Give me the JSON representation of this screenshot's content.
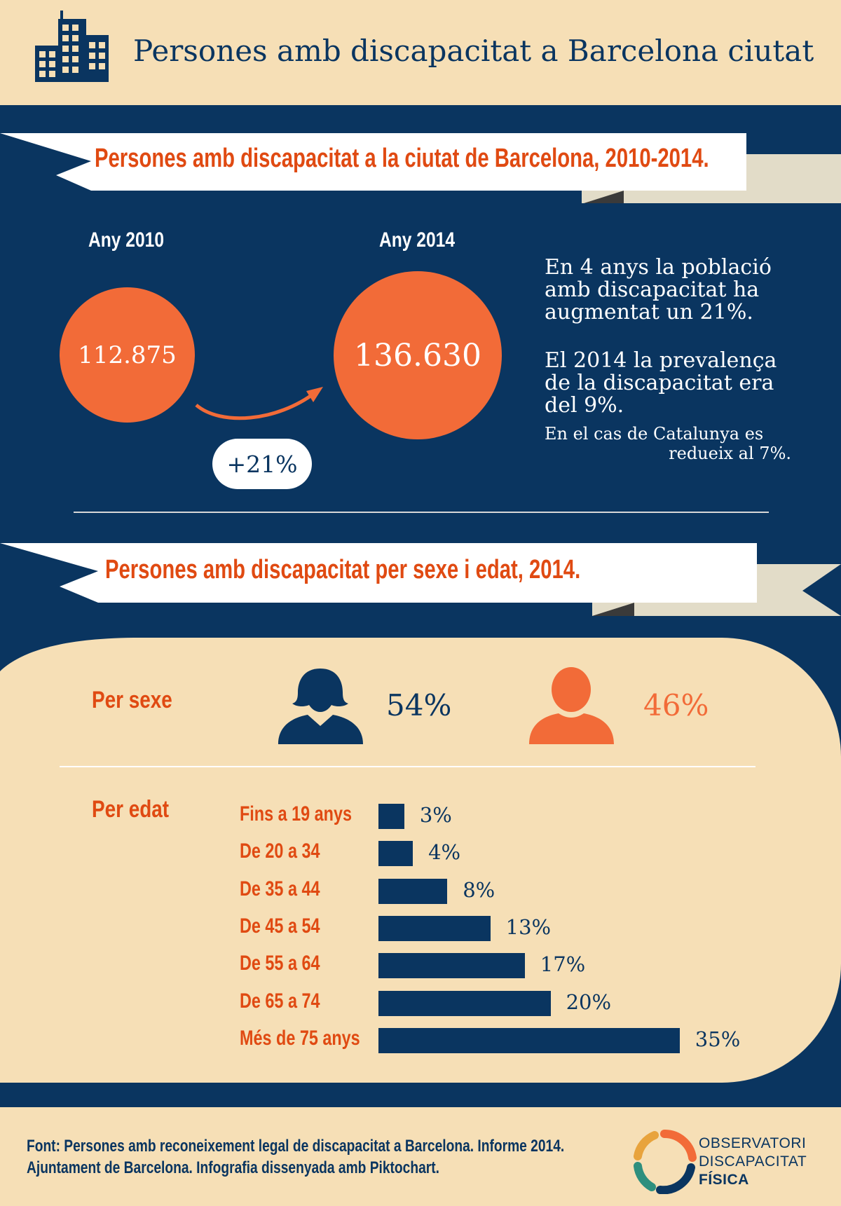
{
  "header": {
    "title": "Persones amb discapacitat a Barcelona ciutat",
    "icon": "building-icon"
  },
  "section1": {
    "banner": "Persones amb discapacitat a la ciutat de Barcelona, 2010-2014.",
    "year_2010_label": "Any 2010",
    "year_2014_label": "Any 2014",
    "value_2010": "112.875",
    "value_2014": "136.630",
    "increase": "+21%",
    "note_1": [
      "En 4 anys la població",
      "amb discapacitat ha",
      "augmentat un 21%."
    ],
    "note_2": [
      "El 2014 la prevalença",
      "de la discapacitat era",
      "del 9%."
    ],
    "note_3": [
      "En el cas de Catalunya es",
      "redueix al 7%."
    ]
  },
  "section2": {
    "banner": "Persones amb discapacitat per sexe i edat, 2014.",
    "sex_label": "Per sexe",
    "female_pct": "54%",
    "male_pct": "46%",
    "age_label": "Per edat"
  },
  "chart_data": [
    {
      "type": "bar",
      "title": "Persones amb discapacitat a la ciutat de Barcelona, 2010-2014.",
      "categories": [
        "Any 2010",
        "Any 2014"
      ],
      "values": [
        112875,
        136630
      ],
      "annotation": "+21%"
    },
    {
      "type": "pie",
      "title": "Per sexe",
      "categories": [
        "Dones",
        "Homes"
      ],
      "values": [
        54,
        46
      ]
    },
    {
      "type": "bar",
      "title": "Per edat",
      "orientation": "horizontal",
      "categories": [
        "Fins a 19 anys",
        "De 20 a 34",
        "De 35 a 44",
        "De 45 a 54",
        "De 55 a 64",
        "De 65 a 74",
        "Més de 75 anys"
      ],
      "values": [
        3,
        4,
        8,
        13,
        17,
        20,
        35
      ],
      "value_labels": [
        "3%",
        "4%",
        "8%",
        "13%",
        "17%",
        "20%",
        "35%"
      ],
      "xlim": [
        0,
        35
      ],
      "grid": false
    }
  ],
  "footer": {
    "source_line_1": "Font: Persones amb reconeixement legal de discapacitat a Barcelona. Informe 2014.",
    "source_line_2": "Ajuntament de Barcelona. Infografia dissenyada amb Piktochart.",
    "logo_line_1": "OBSERVATORI",
    "logo_line_2": "DISCAPACITAT",
    "logo_line_3": "FÍSICA"
  },
  "colors": {
    "navy": "#0a3560",
    "orange": "#f26b38",
    "orange_text": "#e04a12",
    "beige": "#f6dfb6"
  }
}
